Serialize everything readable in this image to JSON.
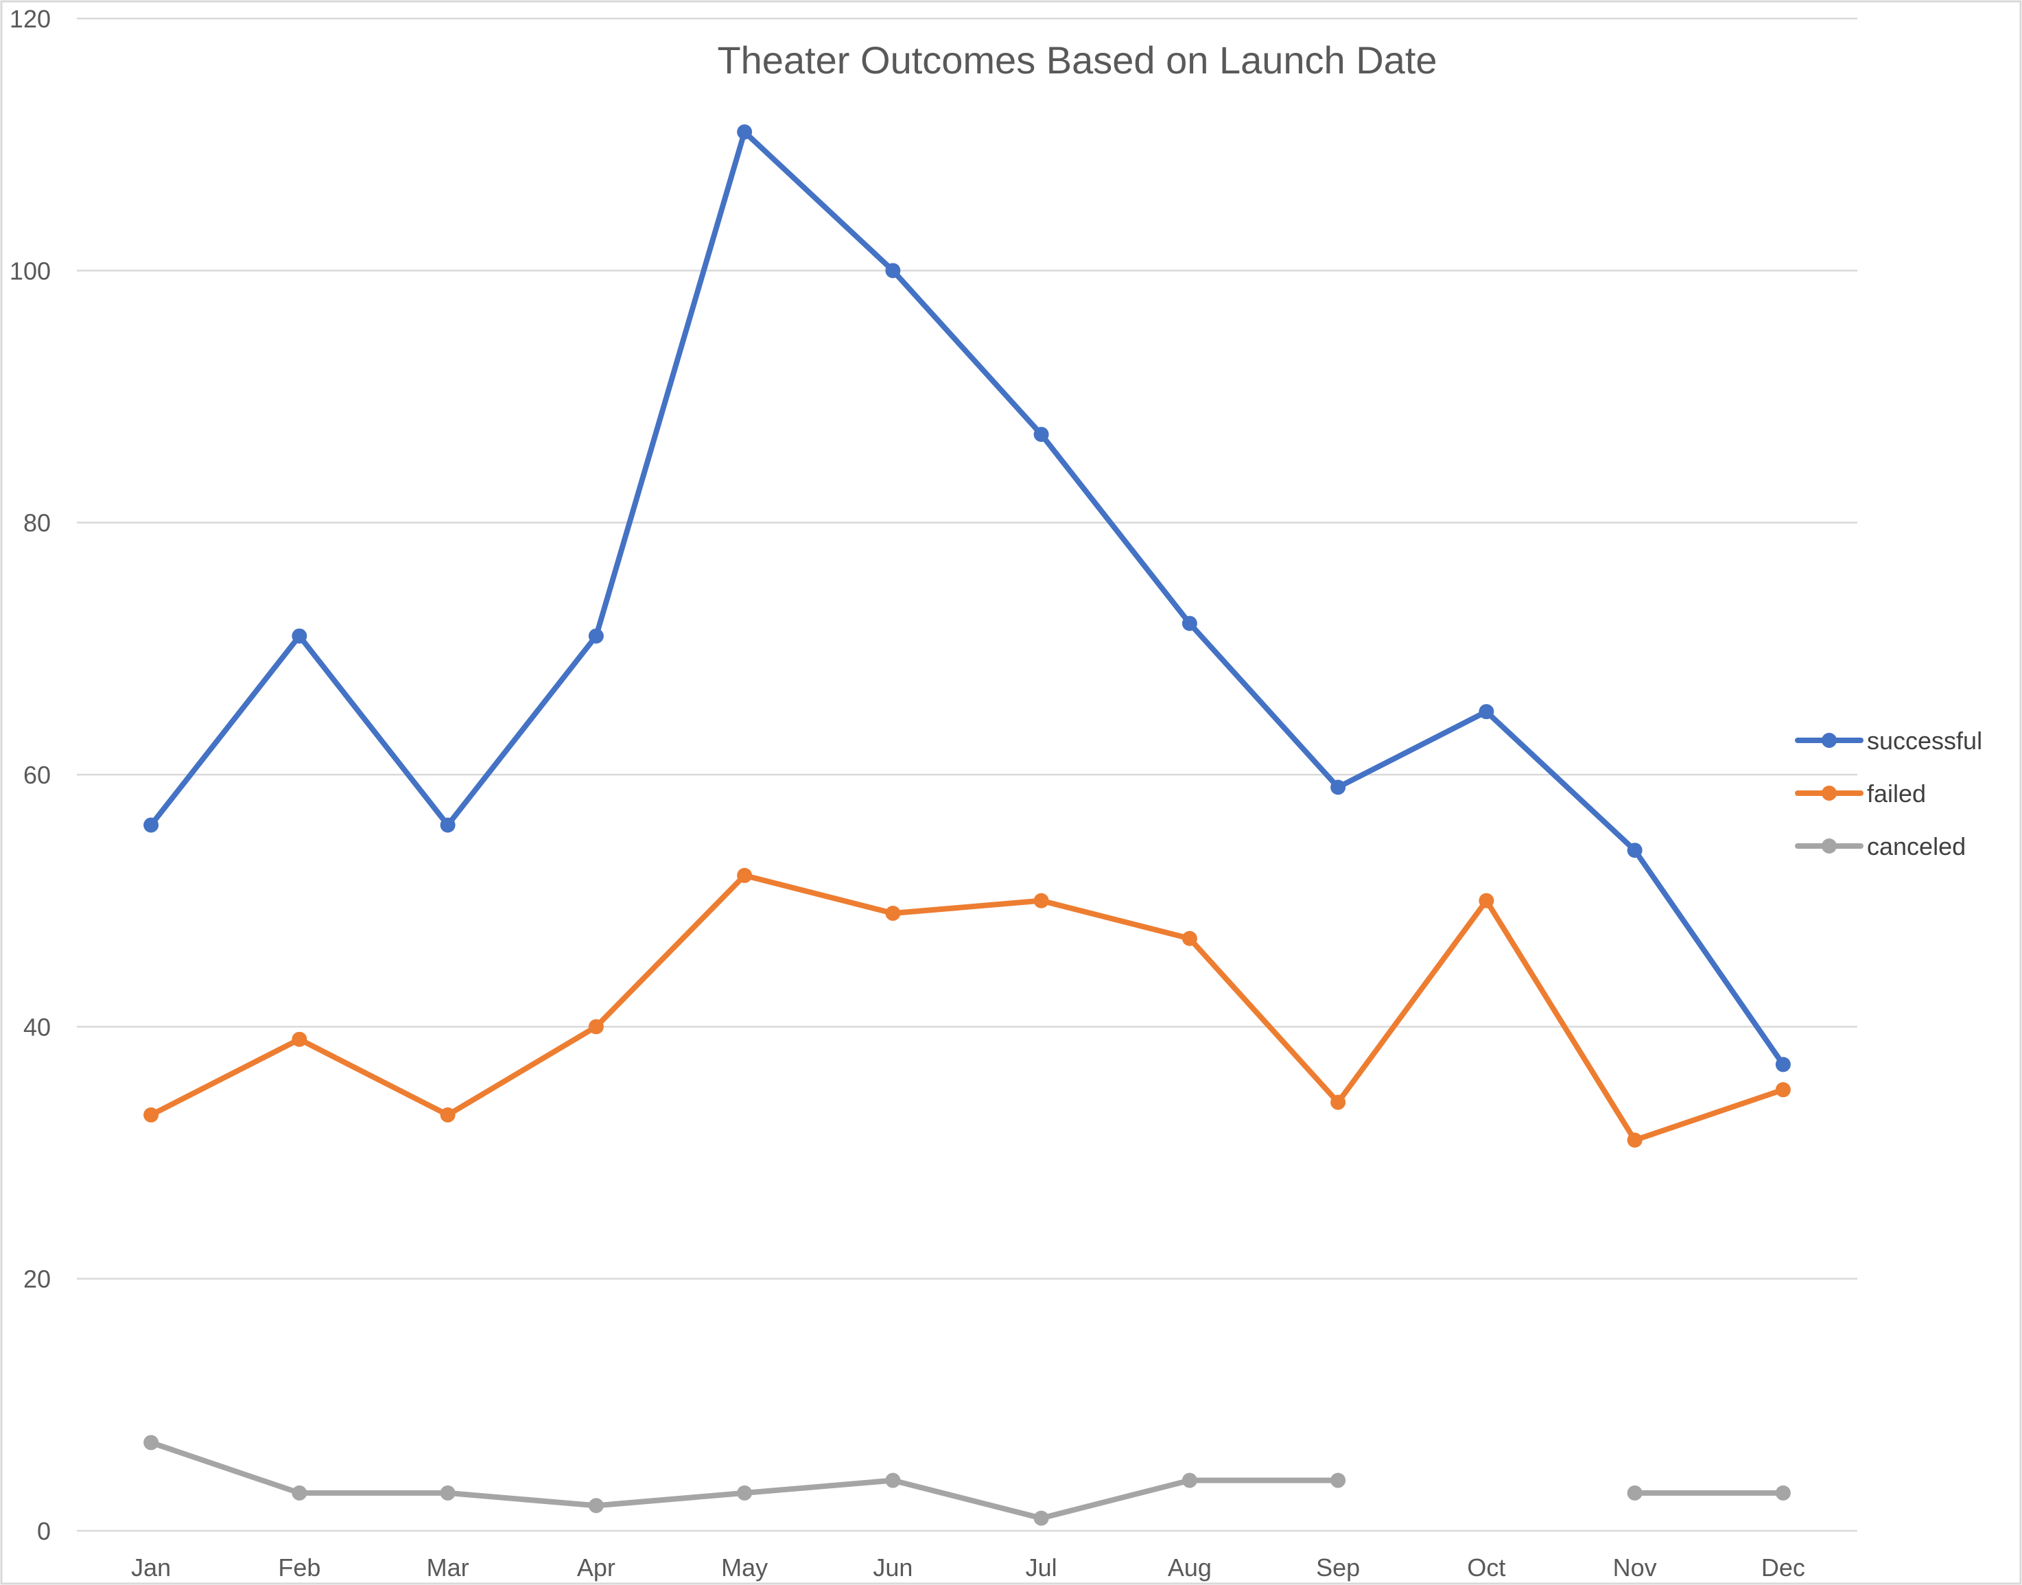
{
  "chart_data": {
    "type": "line",
    "title": "Theater Outcomes Based on Launch Date",
    "xlabel": "",
    "ylabel": "",
    "categories": [
      "Jan",
      "Feb",
      "Mar",
      "Apr",
      "May",
      "Jun",
      "Jul",
      "Aug",
      "Sep",
      "Oct",
      "Nov",
      "Dec"
    ],
    "ylim": [
      0,
      120
    ],
    "yticks": [
      "0",
      "20",
      "40",
      "60",
      "80",
      "100",
      "120"
    ],
    "grid": true,
    "legend_position": "right",
    "series": [
      {
        "name": "successful",
        "color": "#4472C4",
        "values": [
          56,
          71,
          56,
          71,
          111,
          100,
          87,
          72,
          59,
          65,
          54,
          37
        ]
      },
      {
        "name": "failed",
        "color": "#ED7D31",
        "values": [
          33,
          39,
          33,
          40,
          52,
          49,
          50,
          47,
          34,
          50,
          31,
          35
        ]
      },
      {
        "name": "canceled",
        "color": "#A5A5A5",
        "values": [
          7,
          3,
          3,
          2,
          3,
          4,
          1,
          4,
          4,
          null,
          3,
          3
        ]
      }
    ]
  }
}
